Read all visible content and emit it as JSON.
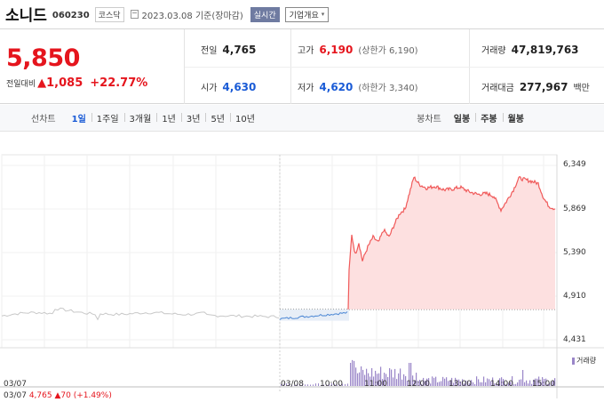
{
  "header": {
    "name": "소니드",
    "code": "060230",
    "market": "코스닥",
    "date": "2023.03.08 기준(장마감)",
    "realtime_btn": "실시간",
    "overview_btn": "기업개요"
  },
  "quote": {
    "price": "5,850",
    "change_label": "전일대비",
    "change": "1,085",
    "change_pct": "+22.77%",
    "prev_close_label": "전일",
    "prev_close": "4,765",
    "high_label": "고가",
    "high": "6,190",
    "upper_limit": "(상한가 6,190)",
    "volume_label": "거래량",
    "volume": "47,819,763",
    "open_label": "시가",
    "open": "4,630",
    "low_label": "저가",
    "low": "4,620",
    "lower_limit": "(하한가 3,340)",
    "value_label": "거래대금",
    "value": "277,967",
    "value_unit": "백만"
  },
  "periods": {
    "label": "선차트",
    "items": [
      "1일",
      "1주일",
      "3개월",
      "1년",
      "3년",
      "5년",
      "10년"
    ],
    "active_index": 0,
    "right_label": "봉차트",
    "right_items": [
      "일봉",
      "주봉",
      "월봉"
    ]
  },
  "chart": {
    "y_ticks": [
      "6,349",
      "5,869",
      "5,390",
      "4,910",
      "4,431"
    ],
    "x_ticks": [
      "03/07",
      "03/08",
      "10:00",
      "11:00",
      "12:00",
      "13:00",
      "14:00",
      "15:00"
    ],
    "volume_legend": "거래량",
    "footer_date": "03/07",
    "footer_price": "4,765",
    "footer_change": "▲70 (+1.49%)",
    "colors": {
      "prev_day": "#c8c8c8",
      "pre_jump": "#4a86d4",
      "up": "#f05a5a",
      "fill": "#fde0e0",
      "volume": "#9a86c8"
    }
  }
}
